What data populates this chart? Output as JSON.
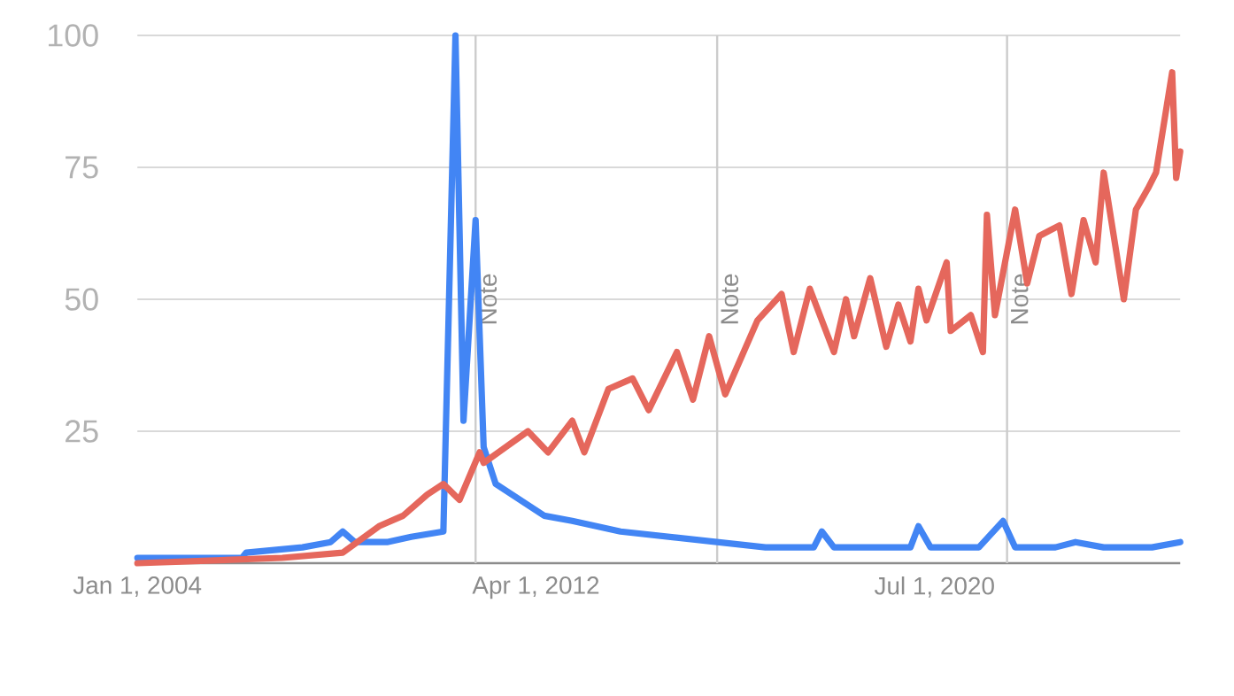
{
  "chart_data": {
    "type": "line",
    "xlim": [
      "2004-01",
      "2025-08"
    ],
    "ylim": [
      0,
      100
    ],
    "xticks": [
      {
        "value": "2004-01-01",
        "label": "Jan 1, 2004"
      },
      {
        "value": "2012-04-01",
        "label": "Apr 1, 2012"
      },
      {
        "value": "2020-07-01",
        "label": "Jul 1, 2020"
      }
    ],
    "yticks": [
      {
        "value": 0,
        "label": null
      },
      25,
      50,
      75,
      100
    ],
    "grid": "y",
    "marker": "none",
    "line_style": "solid",
    "ref_lines": [
      {
        "axis": "x",
        "value": "2011-01-01",
        "label": "Note",
        "color": "#cccccc"
      },
      {
        "axis": "x",
        "value": "2016-01-01",
        "label": "Note",
        "color": "#cccccc"
      },
      {
        "axis": "x",
        "value": "2022-01-01",
        "label": "Note",
        "color": "#cccccc"
      }
    ],
    "series": [
      {
        "color": "#4285f4",
        "x": [
          "2004-01",
          "2006-03",
          "2006-04",
          "2007-06",
          "2008-01",
          "2008-04",
          "2008-07",
          "2009-03",
          "2009-09",
          "2010-05",
          "2010-08",
          "2010-10",
          "2011-01",
          "2011-03",
          "2011-06",
          "2011-12",
          "2012-06",
          "2013-01",
          "2014-01",
          "2015-01",
          "2016-01",
          "2017-01",
          "2018-01",
          "2018-03",
          "2018-06",
          "2019-06",
          "2020-01",
          "2020-03",
          "2020-06",
          "2021-06",
          "2021-12",
          "2022-03",
          "2023-01",
          "2023-06",
          "2024-01",
          "2024-06",
          "2025-01",
          "2025-08"
        ],
        "values": [
          1,
          1,
          2,
          3,
          4,
          6,
          4,
          4,
          5,
          6,
          100,
          27,
          65,
          22,
          15,
          12,
          9,
          8,
          6,
          5,
          4,
          3,
          3,
          6,
          3,
          3,
          3,
          7,
          3,
          3,
          8,
          3,
          3,
          4,
          3,
          3,
          3,
          4
        ]
      },
      {
        "color": "#e5675c",
        "x": [
          "2004-01",
          "2007-01",
          "2008-04",
          "2009-01",
          "2009-07",
          "2010-01",
          "2010-05",
          "2010-09",
          "2011-02",
          "2011-03",
          "2012-02",
          "2012-07",
          "2013-01",
          "2013-04",
          "2013-10",
          "2014-04",
          "2014-08",
          "2015-03",
          "2015-07",
          "2015-11",
          "2016-03",
          "2016-11",
          "2017-05",
          "2017-08",
          "2017-12",
          "2018-06",
          "2018-09",
          "2018-11",
          "2019-03",
          "2019-07",
          "2019-10",
          "2020-01",
          "2020-03",
          "2020-05",
          "2020-10",
          "2020-11",
          "2021-04",
          "2021-07",
          "2021-08",
          "2021-10",
          "2022-03",
          "2022-06",
          "2022-09",
          "2023-02",
          "2023-05",
          "2023-08",
          "2023-11",
          "2024-01",
          "2024-06",
          "2024-09",
          "2024-12",
          "2025-02",
          "2025-06",
          "2025-07",
          "2025-08"
        ],
        "values": [
          0,
          1,
          2,
          7,
          9,
          13,
          15,
          12,
          21,
          19,
          25,
          21,
          27,
          21,
          33,
          35,
          29,
          40,
          31,
          43,
          32,
          46,
          51,
          40,
          52,
          40,
          50,
          43,
          54,
          41,
          49,
          42,
          52,
          46,
          57,
          44,
          47,
          40,
          66,
          47,
          67,
          53,
          62,
          64,
          51,
          65,
          57,
          74,
          50,
          67,
          71,
          74,
          93,
          73,
          78
        ]
      }
    ]
  }
}
